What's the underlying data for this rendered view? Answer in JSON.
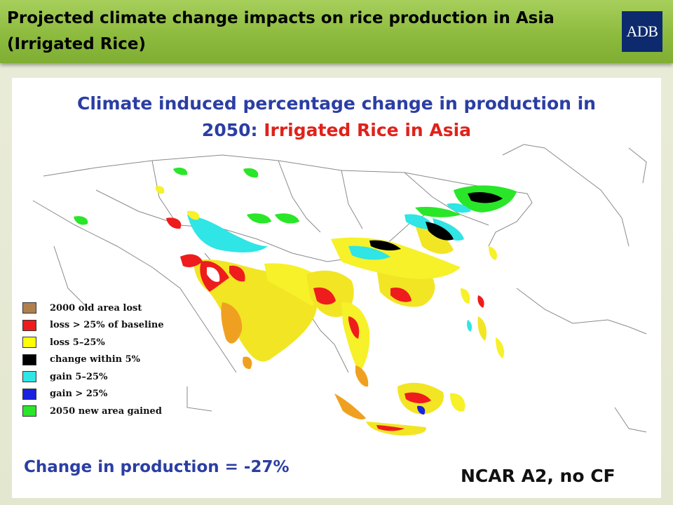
{
  "slide": {
    "title_line1": "Projected climate change impacts on rice production in Asia",
    "title_line2": "(Irrigated Rice)",
    "logo_text": "ADB"
  },
  "figure": {
    "title_line1": "Climate induced percentage change in production in",
    "title_year": "2050:",
    "title_crop": "Irrigated Rice in Asia",
    "summary": "Change in production = -27%",
    "scenario": "NCAR A2, no CF"
  },
  "legend": [
    {
      "label": "2000 old area lost",
      "color": "#b07f4e"
    },
    {
      "label": "loss > 25% of baseline",
      "color": "#ee1c1c"
    },
    {
      "label": "loss 5–25%",
      "color": "#ffff00"
    },
    {
      "label": "change within 5%",
      "color": "#000000"
    },
    {
      "label": "gain 5–25%",
      "color": "#2fe5e5"
    },
    {
      "label": "gain > 25%",
      "color": "#1a22e0"
    },
    {
      "label": "2050 new area gained",
      "color": "#29e629"
    }
  ]
}
